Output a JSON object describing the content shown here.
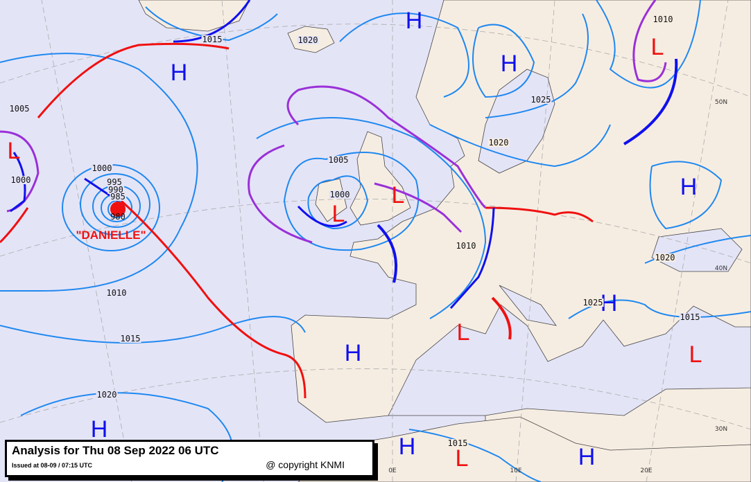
{
  "colors": {
    "sea": "#e4e4f7",
    "land": "#f6ede2",
    "isobar": "#1e88f0",
    "cold_front": "#1010ee",
    "warm_front": "#f01010",
    "occluded_front": "#9a30d8",
    "high": "#1010ee",
    "low": "#f01010"
  },
  "highs": [
    "H",
    "H",
    "H",
    "H",
    "H",
    "H",
    "H",
    "H",
    "H"
  ],
  "lows": [
    "L",
    "L",
    "L",
    "L",
    "L",
    "L",
    "L"
  ],
  "isobar_labels": [
    "1015",
    "1020",
    "1005",
    "1000",
    "995",
    "990",
    "985",
    "980",
    "1000",
    "1005",
    "1000",
    "1010",
    "1025",
    "1020",
    "1010",
    "1020",
    "1025",
    "1015",
    "1010",
    "1015",
    "1020",
    "1015"
  ],
  "graticule_labels": [
    "50N",
    "40N",
    "30N",
    "0E",
    "10E",
    "20E"
  ],
  "storm_name": "\"DANIELLE\"",
  "caption": {
    "title": "Analysis for Thu 08 Sep 2022 06 UTC",
    "issued": "Issued at 08-09 / 07:15 UTC",
    "copyright": "@ copyright KNMI"
  }
}
